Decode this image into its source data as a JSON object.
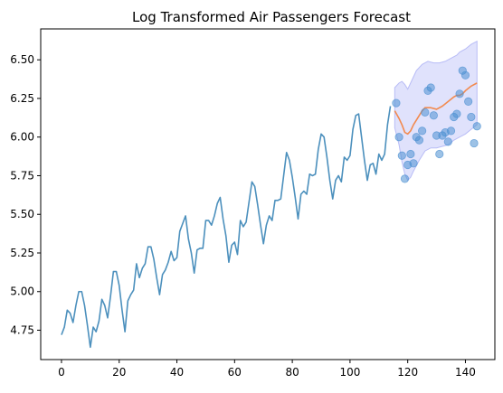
{
  "chart_data": {
    "type": "line",
    "title": "Log Transformed Air Passengers Forecast",
    "xlabel": "",
    "ylabel": "",
    "xlim": [
      -7.2,
      150.2
    ],
    "ylim": [
      4.56,
      6.7
    ],
    "xticks": [
      0,
      20,
      40,
      60,
      80,
      100,
      120,
      140
    ],
    "yticks": [
      4.75,
      5.0,
      5.25,
      5.5,
      5.75,
      6.0,
      6.25,
      6.5
    ],
    "ytick_labels": [
      "4.75",
      "5.00",
      "5.25",
      "5.50",
      "5.75",
      "6.00",
      "6.25",
      "6.50"
    ],
    "grid": false,
    "series": [
      {
        "kind": "line",
        "color": "#4c90bd",
        "x_start": 0,
        "values": [
          4.72,
          4.77,
          4.88,
          4.86,
          4.8,
          4.91,
          5.0,
          5.0,
          4.91,
          4.78,
          4.64,
          4.77,
          4.74,
          4.81,
          4.95,
          4.91,
          4.83,
          4.97,
          5.13,
          5.13,
          5.04,
          4.88,
          4.74,
          4.94,
          4.98,
          5.01,
          5.18,
          5.09,
          5.15,
          5.18,
          5.29,
          5.29,
          5.21,
          5.09,
          4.98,
          5.11,
          5.14,
          5.19,
          5.26,
          5.2,
          5.22,
          5.39,
          5.44,
          5.49,
          5.34,
          5.25,
          5.12,
          5.27,
          5.28,
          5.28,
          5.46,
          5.46,
          5.43,
          5.49,
          5.57,
          5.61,
          5.47,
          5.36,
          5.19,
          5.3,
          5.32,
          5.24,
          5.46,
          5.42,
          5.45,
          5.58,
          5.71,
          5.68,
          5.56,
          5.43,
          5.31,
          5.43,
          5.49,
          5.46,
          5.59,
          5.59,
          5.6,
          5.75,
          5.9,
          5.85,
          5.74,
          5.61,
          5.47,
          5.63,
          5.65,
          5.63,
          5.76,
          5.75,
          5.76,
          5.92,
          6.02,
          6.0,
          5.87,
          5.72,
          5.6,
          5.72,
          5.75,
          5.71,
          5.87,
          5.85,
          5.88,
          6.05,
          6.14,
          6.15,
          6.0,
          5.85,
          5.72,
          5.82,
          5.83,
          5.76,
          5.89,
          5.85,
          5.89,
          6.08,
          6.2
        ]
      },
      {
        "kind": "scatter",
        "color": "#4c90d2",
        "points": [
          [
            116,
            6.22
          ],
          [
            117,
            6.0
          ],
          [
            118,
            5.88
          ],
          [
            119,
            5.73
          ],
          [
            120,
            5.82
          ],
          [
            121,
            5.89
          ],
          [
            122,
            5.83
          ],
          [
            123,
            6.0
          ],
          [
            124,
            5.98
          ],
          [
            125,
            6.04
          ],
          [
            126,
            6.16
          ],
          [
            127,
            6.3
          ],
          [
            128,
            6.32
          ],
          [
            129,
            6.14
          ],
          [
            130,
            6.01
          ],
          [
            131,
            5.89
          ],
          [
            132,
            6.01
          ],
          [
            133,
            6.03
          ],
          [
            134,
            5.97
          ],
          [
            135,
            6.04
          ],
          [
            136,
            6.13
          ],
          [
            137,
            6.15
          ],
          [
            138,
            6.28
          ],
          [
            139,
            6.43
          ],
          [
            140,
            6.4
          ],
          [
            141,
            6.23
          ],
          [
            142,
            6.13
          ],
          [
            143,
            5.96
          ],
          [
            144,
            6.07
          ]
        ]
      },
      {
        "kind": "line",
        "color": "#f28a4f",
        "points": [
          [
            115.5,
            6.17
          ],
          [
            117,
            6.12
          ],
          [
            118,
            6.08
          ],
          [
            119,
            6.03
          ],
          [
            120,
            6.02
          ],
          [
            121,
            6.04
          ],
          [
            122,
            6.08
          ],
          [
            124,
            6.14
          ],
          [
            125,
            6.17
          ],
          [
            126,
            6.19
          ],
          [
            128,
            6.19
          ],
          [
            130,
            6.18
          ],
          [
            132,
            6.2
          ],
          [
            134,
            6.23
          ],
          [
            136,
            6.26
          ],
          [
            137,
            6.27
          ],
          [
            138,
            6.27
          ],
          [
            139,
            6.28
          ],
          [
            140,
            6.3
          ],
          [
            142,
            6.33
          ],
          [
            144,
            6.35
          ]
        ]
      },
      {
        "kind": "band",
        "color": "#d6d8fb",
        "edge_color": "#b8bcf6",
        "upper": [
          [
            115.5,
            6.32
          ],
          [
            117,
            6.35
          ],
          [
            118,
            6.36
          ],
          [
            119,
            6.34
          ],
          [
            120,
            6.31
          ],
          [
            121,
            6.35
          ],
          [
            123,
            6.43
          ],
          [
            125,
            6.47
          ],
          [
            127,
            6.49
          ],
          [
            129,
            6.48
          ],
          [
            131,
            6.48
          ],
          [
            133,
            6.49
          ],
          [
            135,
            6.51
          ],
          [
            137,
            6.53
          ],
          [
            138,
            6.55
          ],
          [
            140,
            6.57
          ],
          [
            142,
            6.6
          ],
          [
            144,
            6.62
          ]
        ],
        "lower": [
          [
            115.5,
            6.06
          ],
          [
            117,
            5.95
          ],
          [
            118,
            5.84
          ],
          [
            119,
            5.76
          ],
          [
            120,
            5.72
          ],
          [
            121,
            5.74
          ],
          [
            122,
            5.78
          ],
          [
            124,
            5.85
          ],
          [
            126,
            5.91
          ],
          [
            128,
            5.93
          ],
          [
            130,
            5.93
          ],
          [
            132,
            5.94
          ],
          [
            134,
            5.95
          ],
          [
            136,
            5.98
          ],
          [
            138,
            6.0
          ],
          [
            140,
            6.02
          ],
          [
            142,
            6.05
          ],
          [
            144,
            6.08
          ]
        ]
      }
    ]
  }
}
